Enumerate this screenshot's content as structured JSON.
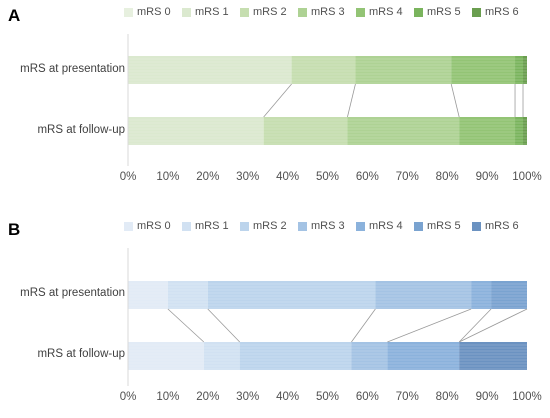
{
  "chart_data": [
    {
      "type": "bar",
      "orientation": "horizontal",
      "stacked": true,
      "panel_label": "A",
      "categories": [
        "mRS at presentation",
        "mRS at follow-up"
      ],
      "series": [
        {
          "name": "mRS 0",
          "values": [
            0,
            0
          ],
          "color": "#e7f0df"
        },
        {
          "name": "mRS 1",
          "values": [
            41,
            34
          ],
          "color": "#dbe9cf"
        },
        {
          "name": "mRS 2",
          "values": [
            16,
            21
          ],
          "color": "#c6deb0"
        },
        {
          "name": "mRS 3",
          "values": [
            24,
            28
          ],
          "color": "#aed294"
        },
        {
          "name": "mRS 4",
          "values": [
            16,
            14
          ],
          "color": "#93c475"
        },
        {
          "name": "mRS 5",
          "values": [
            2,
            2
          ],
          "color": "#7ab45d"
        },
        {
          "name": "mRS 6",
          "values": [
            1,
            1
          ],
          "color": "#6a9e4f"
        }
      ],
      "xlim": [
        0,
        100
      ],
      "xticks": [
        "0%",
        "10%",
        "20%",
        "30%",
        "40%",
        "50%",
        "60%",
        "70%",
        "80%",
        "90%",
        "100%"
      ],
      "legend": "top",
      "grid": false
    },
    {
      "type": "bar",
      "orientation": "horizontal",
      "stacked": true,
      "panel_label": "B",
      "categories": [
        "mRS at presentation",
        "mRS at follow-up"
      ],
      "series": [
        {
          "name": "mRS 0",
          "values": [
            10,
            19
          ],
          "color": "#e2ebf6"
        },
        {
          "name": "mRS 1",
          "values": [
            10,
            9
          ],
          "color": "#d1e1f2"
        },
        {
          "name": "mRS 2",
          "values": [
            42,
            28
          ],
          "color": "#bcd4ec"
        },
        {
          "name": "mRS 3",
          "values": [
            24,
            9
          ],
          "color": "#a4c3e4"
        },
        {
          "name": "mRS 4",
          "values": [
            5,
            18
          ],
          "color": "#8bb2dc"
        },
        {
          "name": "mRS 5",
          "values": [
            9,
            0
          ],
          "color": "#7aa3d0"
        },
        {
          "name": "mRS 6",
          "values": [
            0,
            17
          ],
          "color": "#6b92c1"
        }
      ],
      "xlim": [
        0,
        100
      ],
      "xticks": [
        "0%",
        "10%",
        "20%",
        "30%",
        "40%",
        "50%",
        "60%",
        "70%",
        "80%",
        "90%",
        "100%"
      ],
      "legend": "top",
      "grid": false
    }
  ]
}
